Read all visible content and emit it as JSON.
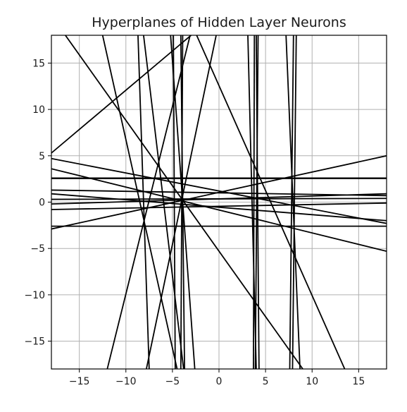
{
  "chart_data": {
    "type": "line",
    "title": "Hyperplanes of Hidden Layer Neurons",
    "xlabel": "",
    "ylabel": "",
    "xlim": [
      -18,
      18
    ],
    "ylim": [
      -18,
      18
    ],
    "grid": true,
    "legend": "none",
    "line_color": "#000000",
    "x_ticks": [
      {
        "value": -15,
        "label": "−15"
      },
      {
        "value": -10,
        "label": "−10"
      },
      {
        "value": -5,
        "label": "−5"
      },
      {
        "value": 0,
        "label": "0"
      },
      {
        "value": 5,
        "label": "5"
      },
      {
        "value": 10,
        "label": "10"
      },
      {
        "value": 15,
        "label": "15"
      }
    ],
    "y_ticks": [
      {
        "value": 15,
        "label": "15"
      },
      {
        "value": 10,
        "label": "10"
      },
      {
        "value": 5,
        "label": "5"
      },
      {
        "value": 0,
        "label": "0"
      },
      {
        "value": -5,
        "label": "−5"
      },
      {
        "value": -10,
        "label": "−10"
      },
      {
        "value": -15,
        "label": "−15"
      }
    ],
    "lines": [
      {
        "p1": [
          -18,
          5.3
        ],
        "p2": [
          -3,
          18
        ]
      },
      {
        "p1": [
          -18,
          2.6
        ],
        "p2": [
          18,
          2.6
        ]
      },
      {
        "p1": [
          -18,
          2.55
        ],
        "p2": [
          18,
          2.55
        ]
      },
      {
        "p1": [
          -18,
          -2.6
        ],
        "p2": [
          18,
          -2.6
        ]
      },
      {
        "p1": [
          -18,
          4.7
        ],
        "p2": [
          18,
          -2.3
        ]
      },
      {
        "p1": [
          -18,
          3.6
        ],
        "p2": [
          18,
          -5.3
        ]
      },
      {
        "p1": [
          -18,
          1.3
        ],
        "p2": [
          18,
          0.7
        ]
      },
      {
        "p1": [
          -18,
          0.3
        ],
        "p2": [
          18,
          0.4
        ]
      },
      {
        "p1": [
          -18,
          -0.2
        ],
        "p2": [
          18,
          0.9
        ]
      },
      {
        "p1": [
          -18,
          -0.8
        ],
        "p2": [
          18,
          -0.1
        ]
      },
      {
        "p1": [
          -18,
          0.9
        ],
        "p2": [
          18,
          -2.0
        ]
      },
      {
        "p1": [
          -18,
          -2.9
        ],
        "p2": [
          18,
          5.0
        ]
      },
      {
        "p1": [
          -16.5,
          18
        ],
        "p2": [
          9,
          -18
        ]
      },
      {
        "p1": [
          -12.5,
          18
        ],
        "p2": [
          -4.5,
          -18
        ]
      },
      {
        "p1": [
          -8.7,
          18
        ],
        "p2": [
          -7.5,
          -18
        ]
      },
      {
        "p1": [
          -8.1,
          18
        ],
        "p2": [
          -3.8,
          -18
        ]
      },
      {
        "p1": [
          -5.2,
          18
        ],
        "p2": [
          -2.6,
          -18
        ]
      },
      {
        "p1": [
          -4.9,
          18
        ],
        "p2": [
          -4.7,
          -18
        ]
      },
      {
        "p1": [
          -3.1,
          18
        ],
        "p2": [
          -12,
          -18
        ]
      },
      {
        "p1": [
          -3.9,
          18
        ],
        "p2": [
          -4.1,
          -18
        ]
      },
      {
        "p1": [
          -4.1,
          18
        ],
        "p2": [
          -3.7,
          -18
        ]
      },
      {
        "p1": [
          -2.4,
          18
        ],
        "p2": [
          13.5,
          -18
        ]
      },
      {
        "p1": [
          -0.3,
          18
        ],
        "p2": [
          -7.8,
          -18
        ]
      },
      {
        "p1": [
          3.1,
          18
        ],
        "p2": [
          4.0,
          -18
        ]
      },
      {
        "p1": [
          3.8,
          18
        ],
        "p2": [
          3.7,
          -18
        ]
      },
      {
        "p1": [
          4.2,
          18
        ],
        "p2": [
          3.9,
          -18
        ]
      },
      {
        "p1": [
          4.0,
          18
        ],
        "p2": [
          4.3,
          -18
        ]
      },
      {
        "p1": [
          7.2,
          18
        ],
        "p2": [
          8.7,
          -18
        ]
      },
      {
        "p1": [
          8.0,
          18
        ],
        "p2": [
          7.6,
          -18
        ]
      },
      {
        "p1": [
          8.3,
          18
        ],
        "p2": [
          7.9,
          -18
        ]
      }
    ]
  }
}
